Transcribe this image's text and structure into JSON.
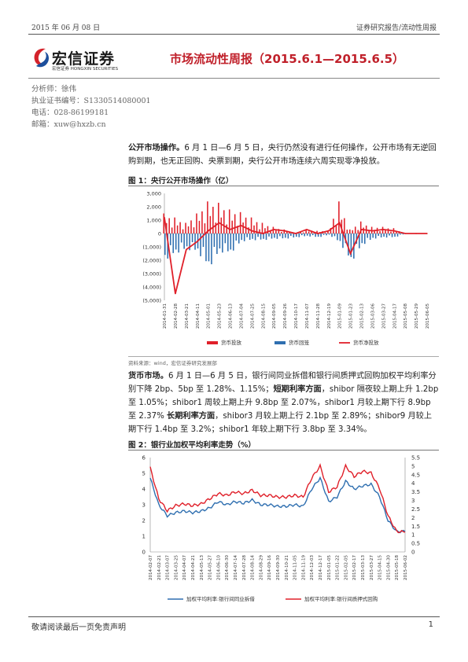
{
  "header": {
    "date": "2015 年 06 月 08 日",
    "category": "证券研究报告/流动性周报"
  },
  "logo": {
    "name": "宏信证券",
    "subtitle": "宏信证券  HONGXIN SECURITIES"
  },
  "title": "市场流动性周报（2015.6.1—2015.6.5）",
  "analyst": {
    "name": "分析师：徐伟",
    "license": "执业证书编号：S1330514080001",
    "phone": "电话：028-86199181",
    "email": "邮箱：xuw@hxzb.cn"
  },
  "section1": {
    "label": "公开市场操作。",
    "text": "6 月 1 日—6 月 5 日，央行仍然没有进行任何操作，公开市场有无逆回购到期，也无正回购、央票到期，央行公开市场连续六周实现零净投放。"
  },
  "figure1": {
    "title": "图 1：央行公开市场操作（亿）",
    "source": "资料来源：wind，宏信证券研究发展部"
  },
  "section2": {
    "label": "货币市场。",
    "text_a": "6 月 1 日—6 月 5 日，银行间同业拆借和银行间质押式回购加权平均利率分别下降 2bp、5bp 至 1.28%、1.15%；",
    "label_b": "短期利率方面",
    "text_b": "，shibor 隔夜较上期上升 1.2bp 至 1.05%；shibor1 周较上期上升 9.8bp 至 2.07%，shibor1 月较上期下行 8.9bp 至 2.37%",
    "label_c": "长期利率方面",
    "text_c": "，shibor3 月较上期上行 2.1bp 至 2.89%；shibor9 月较上期下行 1.4bp 至 3.2%；shibor1 年较上期下行 3.8bp 至 3.34%。"
  },
  "figure2": {
    "title": "图 2：银行业加权平均利率走势（%）"
  },
  "footer": {
    "disclaimer": "敬请阅读最后一页免责声明",
    "page": "1"
  },
  "chart_data": [
    {
      "type": "bar",
      "title": "图 1：央行公开市场操作（亿）",
      "ylim": [
        -5000,
        3000
      ],
      "yticks": [
        "3,000",
        "2,000",
        "1,000",
        "0",
        "(1,000)",
        "(2,000)",
        "(3,000)",
        "(4,000)",
        "(5,000)"
      ],
      "categories": [
        "2014-01-31",
        "2014-02-28",
        "2014-03-21",
        "2014-04-11",
        "2014-05-01",
        "2014-05-23",
        "2014-06-13",
        "2014-07-04",
        "2014-07-25",
        "2014-08-15",
        "2014-09-05",
        "2014-09-26",
        "2014-10-17",
        "2014-11-07",
        "2014-11-28",
        "2014-12-19",
        "2015-01-09",
        "2015-01-23",
        "2015-02-13",
        "2015-03-06",
        "2015-03-27",
        "2015-04-17",
        "2015-05-08",
        "2015-05-29",
        "2015-06-05"
      ],
      "series": [
        {
          "name": "货币投放",
          "color": "#e0202a",
          "values": [
            1500,
            1200,
            800,
            1500,
            2400,
            2300,
            1800,
            1600,
            1200,
            800,
            500,
            300,
            0,
            300,
            200,
            200,
            2400,
            300,
            900,
            500,
            500,
            400,
            0,
            0,
            0
          ]
        },
        {
          "name": "货币回笼",
          "color": "#2f6fb0",
          "values": [
            -2000,
            -1500,
            -1200,
            -1400,
            -2600,
            -1400,
            -1500,
            -600,
            -500,
            -500,
            -400,
            -400,
            -300,
            -200,
            -300,
            -100,
            -700,
            -2200,
            -900,
            -400,
            -300,
            -300,
            0,
            0,
            0
          ]
        },
        {
          "name": "货币净投放",
          "color": "#e0202a",
          "values": [
            1200,
            -4500,
            -1200,
            -600,
            200,
            800,
            300,
            600,
            200,
            0,
            300,
            200,
            0,
            300,
            0,
            200,
            800,
            -1500,
            300,
            200,
            300,
            200,
            0,
            0,
            0
          ]
        }
      ],
      "grid": false,
      "legend": "bottom"
    },
    {
      "type": "line",
      "title": "图 2：银行业加权平均利率走势（%）",
      "y_left": [
        0,
        6
      ],
      "y_right": [
        0,
        5.5
      ],
      "yticks_left": [
        "6",
        "5",
        "4",
        "3",
        "2",
        "1",
        "0"
      ],
      "yticks_right": [
        "5.5",
        "5",
        "4.5",
        "4",
        "3.5",
        "3",
        "2.5",
        "2",
        "1.5",
        "1",
        "0.5",
        "0"
      ],
      "x": [
        "2014-02-07",
        "2014-02-21",
        "2014-03-07",
        "2014-03-25",
        "2014-04-07",
        "2014-04-21",
        "2014-05-13",
        "2014-05-27",
        "2014-06-10",
        "2014-06-30",
        "2014-07-14",
        "2014-07-28",
        "2014-08-14",
        "2014-08-29",
        "2014-09-16",
        "2014-09-30",
        "2014-10-21",
        "2014-11-05",
        "2014-11-19",
        "2014-12-03",
        "2014-12-17",
        "2015-01-05",
        "2015-01-22",
        "2015-02-05",
        "2015-02-17",
        "2015-03-13",
        "2015-03-27",
        "2015-04-15",
        "2015-04-30",
        "2015-05-18",
        "2015-06-02"
      ],
      "series": [
        {
          "name": "加权平均利率:银行间同业拆借",
          "color": "#2f6fb0",
          "axis": "left",
          "values": [
            4.7,
            3.0,
            2.3,
            2.5,
            2.6,
            2.5,
            2.6,
            2.8,
            3.2,
            3.0,
            3.2,
            3.1,
            3.3,
            3.0,
            3.0,
            2.9,
            2.9,
            3.0,
            2.9,
            4.0,
            4.7,
            3.2,
            3.5,
            4.5,
            4.0,
            4.2,
            4.3,
            3.5,
            2.0,
            1.3,
            1.3
          ]
        },
        {
          "name": "加权平均利率:银行间质押式回购",
          "color": "#e0202a",
          "axis": "right",
          "values": [
            4.9,
            3.1,
            2.4,
            2.7,
            2.8,
            2.7,
            2.8,
            3.1,
            3.4,
            3.3,
            3.5,
            3.4,
            3.6,
            3.3,
            3.3,
            3.2,
            3.2,
            3.3,
            3.2,
            4.3,
            5.0,
            3.5,
            3.8,
            5.0,
            4.4,
            4.7,
            4.6,
            3.7,
            2.1,
            1.2,
            1.15
          ]
        }
      ],
      "legend": "bottom"
    }
  ]
}
